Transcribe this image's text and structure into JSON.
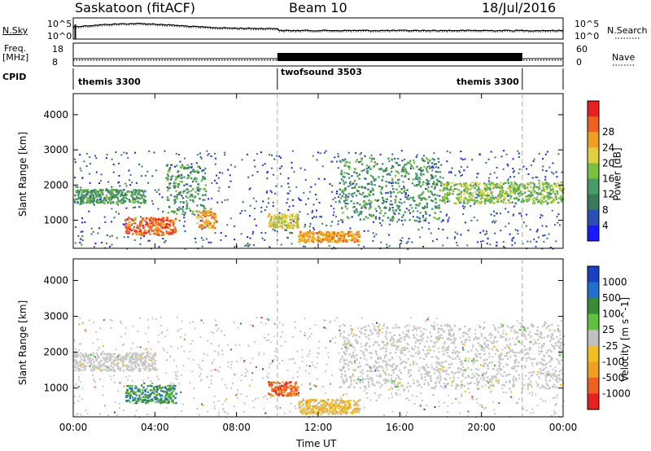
{
  "header": {
    "station": "Saskatoon (fitACF)",
    "beam": "Beam 10",
    "date": "18/Jul/2016"
  },
  "top_panels": {
    "nsky_label": "N.Sky",
    "nsky_ticks": [
      "10^5",
      "10^0"
    ],
    "nsearch_label": "N.Search",
    "nsearch_ticks": [
      "10^5",
      "10^0"
    ],
    "freq_label_line1": "Freq.",
    "freq_label_line2": "[MHz]",
    "freq_ticks": [
      "18",
      "8"
    ],
    "nave_label": "Nave",
    "nave_ticks": [
      "60",
      "0"
    ],
    "cpid_label": "CPID",
    "cpid_segments": [
      {
        "name": "themis 3300",
        "start_hour": 0,
        "end_hour": 10
      },
      {
        "name": "twofsound 3503",
        "start_hour": 10,
        "end_hour": 22
      },
      {
        "name": "themis 3300",
        "start_hour": 22,
        "end_hour": 24
      }
    ]
  },
  "colors": {
    "power": [
      "#1a1aff",
      "#2a4fb5",
      "#3a7a5a",
      "#4a9a6a",
      "#7ac040",
      "#e0d040",
      "#f0a020",
      "#f06020",
      "#e82020"
    ],
    "velocity": [
      "#1840c0",
      "#2070d0",
      "#3a8a3a",
      "#60c040",
      "#c0c0c0",
      "#f0c020",
      "#f0a020",
      "#f06020",
      "#e82020"
    ],
    "background_scatter": "#c8c8c8"
  },
  "chart_data": [
    {
      "type": "heatmap",
      "title": "",
      "xlabel": "Time UT",
      "ylabel": "Slant Range [km]",
      "xlim_hours": [
        0,
        24
      ],
      "ylim": [
        200,
        4600
      ],
      "x_ticks": [
        "00:00",
        "04:00",
        "08:00",
        "12:00",
        "16:00",
        "20:00",
        "00:00"
      ],
      "y_ticks": [
        1000,
        2000,
        3000,
        4000
      ],
      "colorbar": {
        "label": "Power [dB]",
        "ticks": [
          "4",
          "8",
          "12",
          "16",
          "20",
          "24",
          "28"
        ],
        "range": [
          0,
          30
        ]
      },
      "features": [
        {
          "t_start": 0.0,
          "t_end": 3.5,
          "range_start": 1500,
          "range_end": 1900,
          "level": 12
        },
        {
          "t_start": 2.5,
          "t_end": 5.0,
          "range_start": 600,
          "range_end": 1100,
          "level": 26
        },
        {
          "t_start": 4.5,
          "t_end": 6.5,
          "range_start": 1200,
          "range_end": 2600,
          "level": 10
        },
        {
          "t_start": 6.0,
          "t_end": 7.0,
          "range_start": 800,
          "range_end": 1300,
          "level": 20
        },
        {
          "t_start": 9.5,
          "t_end": 11.0,
          "range_start": 800,
          "range_end": 1200,
          "level": 18
        },
        {
          "t_start": 11.0,
          "t_end": 14.0,
          "range_start": 400,
          "range_end": 700,
          "level": 22
        },
        {
          "t_start": 13.0,
          "t_end": 18.0,
          "range_start": 1000,
          "range_end": 2800,
          "level": 10
        },
        {
          "t_start": 18.0,
          "t_end": 24.0,
          "range_start": 1500,
          "range_end": 2100,
          "level": 14
        }
      ]
    },
    {
      "type": "heatmap",
      "title": "",
      "xlabel": "Time UT",
      "ylabel": "Slant Range [km]",
      "xlim_hours": [
        0,
        24
      ],
      "ylim": [
        200,
        4600
      ],
      "x_ticks": [
        "00:00",
        "04:00",
        "08:00",
        "12:00",
        "16:00",
        "20:00",
        "00:00"
      ],
      "y_ticks": [
        1000,
        2000,
        3000,
        4000
      ],
      "colorbar": {
        "label": "Velocity [m s^-1]",
        "ticks": [
          "1000",
          "500",
          "100",
          "25",
          "-25",
          "-100",
          "-500",
          "-1000"
        ],
        "range": [
          -1200,
          1200
        ]
      },
      "features": [
        {
          "t_start": 0.0,
          "t_end": 4.0,
          "range_start": 1500,
          "range_end": 2000,
          "velocity": 0
        },
        {
          "t_start": 2.5,
          "t_end": 5.0,
          "range_start": 600,
          "range_end": 1100,
          "velocity": 150
        },
        {
          "t_start": 9.5,
          "t_end": 11.0,
          "range_start": 800,
          "range_end": 1200,
          "velocity": -400
        },
        {
          "t_start": 11.0,
          "t_end": 14.0,
          "range_start": 300,
          "range_end": 700,
          "velocity": -80
        },
        {
          "t_start": 13.0,
          "t_end": 24.0,
          "range_start": 1000,
          "range_end": 2800,
          "velocity": 0
        }
      ]
    }
  ]
}
